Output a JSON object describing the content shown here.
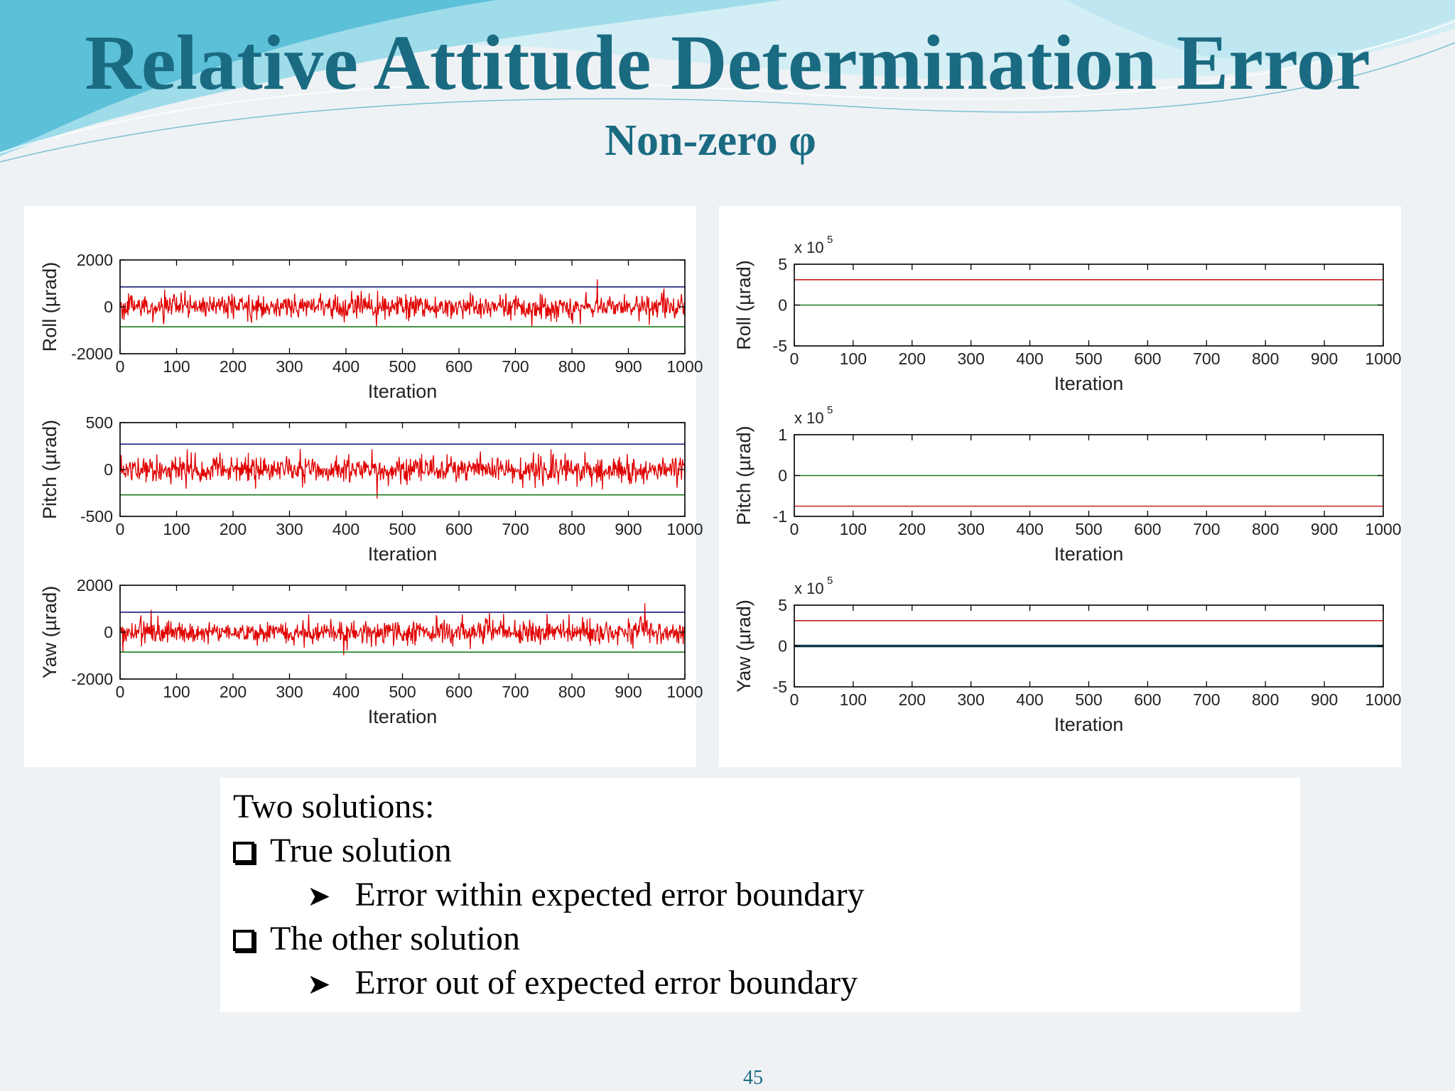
{
  "theme": {
    "title_color": "#1a6b82",
    "wave_light": "#bfe6ef",
    "wave_mid": "#7fd0e2",
    "wave_dark": "#4ab4cf",
    "series_color": "#e00000",
    "upper_bound_color": "#1a1a7a",
    "lower_bound_color": "#1a7a1a",
    "zero_line_color": "#1a7a1a",
    "red_bound_color": "#c82020"
  },
  "slide": {
    "title": "Relative Attitude Determination Error",
    "subtitle": "Non-zero φ",
    "page_number": "45"
  },
  "bullets": {
    "intro": "Two solutions:",
    "item1": "True solution",
    "item1_sub": "Error within expected error boundary",
    "item2": "The other solution",
    "item2_sub": "Error out of expected error boundary"
  },
  "chart_data": [
    {
      "type": "line",
      "panel": "left",
      "ylabel": "Roll (µrad)",
      "xlabel": "Iteration",
      "xlim": [
        0,
        1000
      ],
      "xticks": [
        0,
        100,
        200,
        300,
        400,
        500,
        600,
        700,
        800,
        900,
        1000
      ],
      "xtick_labels": [
        "0",
        "100",
        "200",
        "300",
        "400",
        "500",
        "600",
        "700",
        "800",
        "900",
        "1000"
      ],
      "ylim": [
        -2000,
        2000
      ],
      "yticks": [
        -2000,
        0,
        2000
      ],
      "ytick_labels": [
        "-2000",
        "0",
        "2000"
      ],
      "multiplier": "",
      "series": [
        {
          "noise": true,
          "amplitude": 450
        }
      ],
      "bounds": [
        {
          "value": 850,
          "role": "upper"
        },
        {
          "value": -850,
          "role": "lower"
        }
      ]
    },
    {
      "type": "line",
      "panel": "left",
      "ylabel": "Pitch (µrad)",
      "xlabel": "Iteration",
      "xlim": [
        0,
        1000
      ],
      "xticks": [
        0,
        100,
        200,
        300,
        400,
        500,
        600,
        700,
        800,
        900,
        1000
      ],
      "xtick_labels": [
        "0",
        "100",
        "200",
        "300",
        "400",
        "500",
        "600",
        "700",
        "800",
        "900",
        "1000"
      ],
      "ylim": [
        -500,
        500
      ],
      "yticks": [
        -500,
        0,
        500
      ],
      "ytick_labels": [
        "-500",
        "0",
        "500"
      ],
      "multiplier": "",
      "series": [
        {
          "noise": true,
          "amplitude": 120
        }
      ],
      "bounds": [
        {
          "value": 270,
          "role": "upper"
        },
        {
          "value": -270,
          "role": "lower"
        }
      ]
    },
    {
      "type": "line",
      "panel": "left",
      "ylabel": "Yaw (µrad)",
      "xlabel": "Iteration",
      "xlim": [
        0,
        1000
      ],
      "xticks": [
        0,
        100,
        200,
        300,
        400,
        500,
        600,
        700,
        800,
        900,
        1000
      ],
      "xtick_labels": [
        "0",
        "100",
        "200",
        "300",
        "400",
        "500",
        "600",
        "700",
        "800",
        "900",
        "1000"
      ],
      "ylim": [
        -2000,
        2000
      ],
      "yticks": [
        -2000,
        0,
        2000
      ],
      "ytick_labels": [
        "-2000",
        "0",
        "2000"
      ],
      "multiplier": "",
      "series": [
        {
          "noise": true,
          "amplitude": 450
        }
      ],
      "bounds": [
        {
          "value": 850,
          "role": "upper"
        },
        {
          "value": -850,
          "role": "lower"
        }
      ]
    },
    {
      "type": "line",
      "panel": "right",
      "ylabel": "Roll (µrad)",
      "xlabel": "Iteration",
      "xlim": [
        0,
        1000
      ],
      "xticks": [
        0,
        100,
        200,
        300,
        400,
        500,
        600,
        700,
        800,
        900,
        1000
      ],
      "xtick_labels": [
        "0",
        "100",
        "200",
        "300",
        "400",
        "500",
        "600",
        "700",
        "800",
        "900",
        "1000"
      ],
      "ylim": [
        -5,
        5
      ],
      "yticks": [
        -5,
        0,
        5
      ],
      "ytick_labels": [
        "-5",
        "0",
        "5"
      ],
      "multiplier": "x 10",
      "multiplier_exp": "5",
      "series": [],
      "lines": [
        {
          "value": 3.1,
          "role": "red"
        },
        {
          "value": 0,
          "role": "zero"
        }
      ]
    },
    {
      "type": "line",
      "panel": "right",
      "ylabel": "Pitch (µrad)",
      "xlabel": "Iteration",
      "xlim": [
        0,
        1000
      ],
      "xticks": [
        0,
        100,
        200,
        300,
        400,
        500,
        600,
        700,
        800,
        900,
        1000
      ],
      "xtick_labels": [
        "0",
        "100",
        "200",
        "300",
        "400",
        "500",
        "600",
        "700",
        "800",
        "900",
        "1000"
      ],
      "ylim": [
        -1,
        1
      ],
      "yticks": [
        -1,
        0,
        1
      ],
      "ytick_labels": [
        "-1",
        "0",
        "1"
      ],
      "multiplier": "x 10",
      "multiplier_exp": "5",
      "series": [],
      "lines": [
        {
          "value": -0.75,
          "role": "red"
        },
        {
          "value": 0,
          "role": "zero"
        }
      ]
    },
    {
      "type": "line",
      "panel": "right",
      "ylabel": "Yaw (µrad)",
      "xlabel": "Iteration",
      "xlim": [
        0,
        1000
      ],
      "xticks": [
        0,
        100,
        200,
        300,
        400,
        500,
        600,
        700,
        800,
        900,
        1000
      ],
      "xtick_labels": [
        "0",
        "100",
        "200",
        "300",
        "400",
        "500",
        "600",
        "700",
        "800",
        "900",
        "1000"
      ],
      "ylim": [
        -5,
        5
      ],
      "yticks": [
        -5,
        0,
        5
      ],
      "ytick_labels": [
        "-5",
        "0",
        "5"
      ],
      "multiplier": "x 10",
      "multiplier_exp": "5",
      "series": [],
      "lines": [
        {
          "value": 3.1,
          "role": "red"
        },
        {
          "value": 0,
          "role": "zero-thick"
        }
      ]
    }
  ]
}
